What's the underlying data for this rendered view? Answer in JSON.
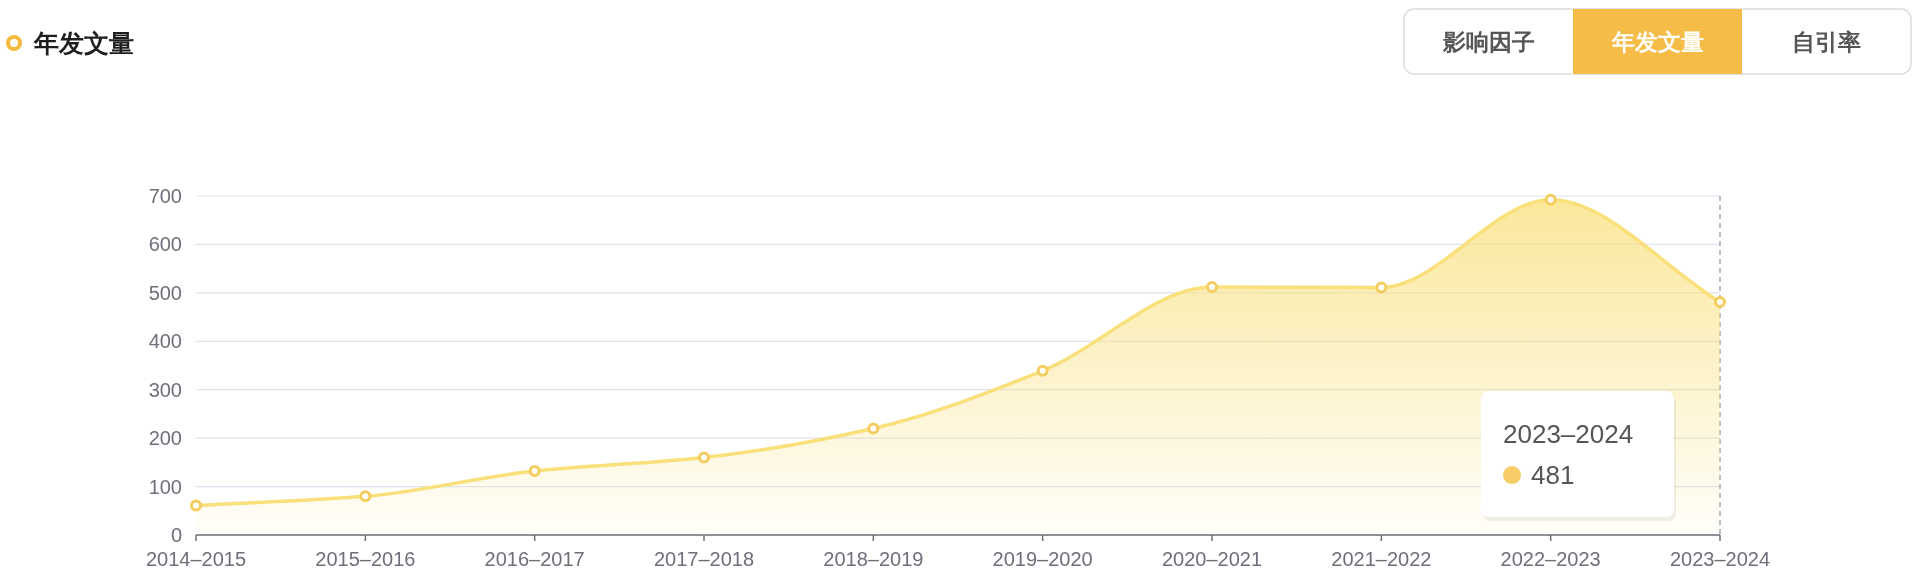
{
  "chart_data": {
    "type": "area",
    "title": "年发文量",
    "categories": [
      "2014–2015",
      "2015–2016",
      "2016–2017",
      "2017–2018",
      "2018–2019",
      "2019–2020",
      "2020–2021",
      "2021–2022",
      "2022–2023",
      "2023–2024"
    ],
    "series": [
      {
        "color": "#f9e07a",
        "values": [
          61,
          80,
          132,
          160,
          220,
          339,
          512,
          511,
          692,
          481
        ]
      }
    ],
    "ylim": [
      0,
      700
    ],
    "yticks": [
      0,
      100,
      200,
      300,
      400,
      500,
      600,
      700
    ],
    "grid": "y",
    "marker": "circle",
    "ref_lines": [
      {
        "axis": "x",
        "value": "2023–2024",
        "color": "#a3a7b7",
        "line_style": "dashed"
      }
    ],
    "annotations": [
      "影响因子",
      "年发文量",
      "自引率",
      "2023–2024\n481"
    ]
  }
}
